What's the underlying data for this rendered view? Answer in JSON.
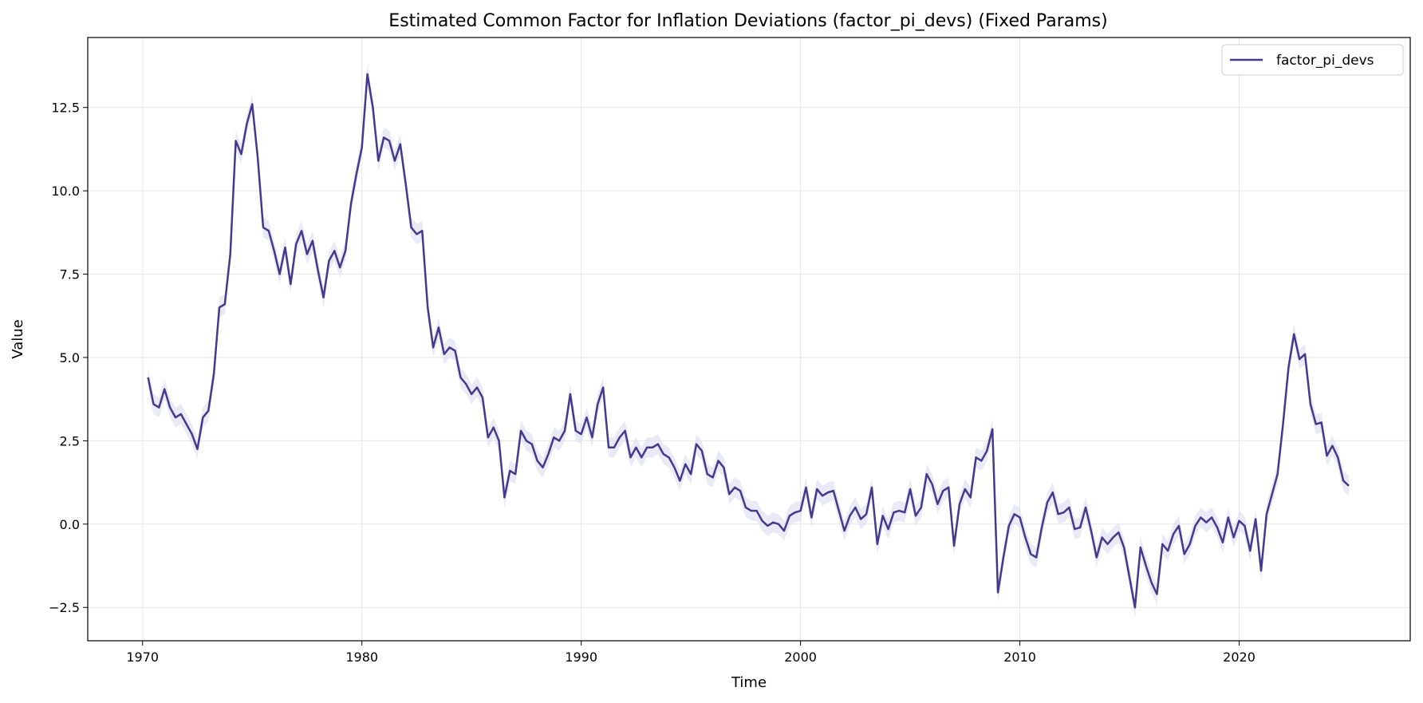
{
  "chart_data": {
    "type": "line",
    "title": "Estimated Common Factor for Inflation Deviations (factor_pi_devs) (Fixed Params)",
    "xlabel": "Time",
    "ylabel": "Value",
    "xlim": [
      1967.5,
      2027.8
    ],
    "ylim": [
      -3.5,
      14.6
    ],
    "xticks": [
      1970,
      1980,
      1990,
      2000,
      2010,
      2020
    ],
    "yticks": [
      -2.5,
      0.0,
      2.5,
      5.0,
      7.5,
      10.0,
      12.5
    ],
    "ytick_labels": [
      "−2.5",
      "0.0",
      "2.5",
      "5.0",
      "7.5",
      "10.0",
      "12.5"
    ],
    "grid": true,
    "legend_position": "top-right",
    "legend": [
      "factor_pi_devs"
    ],
    "band_halfwidth": 0.3,
    "colors": {
      "line": "#433a8c",
      "band": "#dcdcf0",
      "grid": "#e6e6e6",
      "axis": "#000000"
    },
    "series": [
      {
        "name": "factor_pi_devs",
        "x": [
          1970.25,
          1970.5,
          1970.75,
          1971.0,
          1971.25,
          1971.5,
          1971.75,
          1972.0,
          1972.25,
          1972.5,
          1972.75,
          1973.0,
          1973.25,
          1973.5,
          1973.75,
          1974.0,
          1974.25,
          1974.5,
          1974.75,
          1975.0,
          1975.25,
          1975.5,
          1975.75,
          1976.0,
          1976.25,
          1976.5,
          1976.75,
          1977.0,
          1977.25,
          1977.5,
          1977.75,
          1978.0,
          1978.25,
          1978.5,
          1978.75,
          1979.0,
          1979.25,
          1979.5,
          1979.75,
          1980.0,
          1980.25,
          1980.5,
          1980.75,
          1981.0,
          1981.25,
          1981.5,
          1981.75,
          1982.0,
          1982.25,
          1982.5,
          1982.75,
          1983.0,
          1983.25,
          1983.5,
          1983.75,
          1984.0,
          1984.25,
          1984.5,
          1984.75,
          1985.0,
          1985.25,
          1985.5,
          1985.75,
          1986.0,
          1986.25,
          1986.5,
          1986.75,
          1987.0,
          1987.25,
          1987.5,
          1987.75,
          1988.0,
          1988.25,
          1988.5,
          1988.75,
          1989.0,
          1989.25,
          1989.5,
          1989.75,
          1990.0,
          1990.25,
          1990.5,
          1990.75,
          1991.0,
          1991.25,
          1991.5,
          1991.75,
          1992.0,
          1992.25,
          1992.5,
          1992.75,
          1993.0,
          1993.25,
          1993.5,
          1993.75,
          1994.0,
          1994.25,
          1994.5,
          1994.75,
          1995.0,
          1995.25,
          1995.5,
          1995.75,
          1996.0,
          1996.25,
          1996.5,
          1996.75,
          1997.0,
          1997.25,
          1997.5,
          1997.75,
          1998.0,
          1998.25,
          1998.5,
          1998.75,
          1999.0,
          1999.25,
          1999.5,
          1999.75,
          2000.0,
          2000.25,
          2000.5,
          2000.75,
          2001.0,
          2001.25,
          2001.5,
          2001.75,
          2002.0,
          2002.25,
          2002.5,
          2002.75,
          2003.0,
          2003.25,
          2003.5,
          2003.75,
          2004.0,
          2004.25,
          2004.5,
          2004.75,
          2005.0,
          2005.25,
          2005.5,
          2005.75,
          2006.0,
          2006.25,
          2006.5,
          2006.75,
          2007.0,
          2007.25,
          2007.5,
          2007.75,
          2008.0,
          2008.25,
          2008.5,
          2008.75,
          2009.0,
          2009.25,
          2009.5,
          2009.75,
          2010.0,
          2010.25,
          2010.5,
          2010.75,
          2011.0,
          2011.25,
          2011.5,
          2011.75,
          2012.0,
          2012.25,
          2012.5,
          2012.75,
          2013.0,
          2013.25,
          2013.5,
          2013.75,
          2014.0,
          2014.25,
          2014.5,
          2014.75,
          2015.0,
          2015.25,
          2015.5,
          2015.75,
          2016.0,
          2016.25,
          2016.5,
          2016.75,
          2017.0,
          2017.25,
          2017.5,
          2017.75,
          2018.0,
          2018.25,
          2018.5,
          2018.75,
          2019.0,
          2019.25,
          2019.5,
          2019.75,
          2020.0,
          2020.25,
          2020.5,
          2020.75,
          2021.0,
          2021.25,
          2021.5,
          2021.75,
          2022.0,
          2022.25,
          2022.5,
          2022.75,
          2023.0,
          2023.25,
          2023.5,
          2023.75,
          2024.0,
          2024.25,
          2024.5,
          2024.75,
          2025.0
        ],
        "values": [
          4.4,
          3.6,
          3.5,
          4.05,
          3.5,
          3.2,
          3.3,
          3.0,
          2.7,
          2.25,
          3.2,
          3.4,
          4.5,
          6.5,
          6.6,
          8.1,
          11.5,
          11.1,
          12.0,
          12.6,
          11.0,
          8.9,
          8.8,
          8.2,
          7.5,
          8.3,
          7.2,
          8.4,
          8.8,
          8.1,
          8.5,
          7.6,
          6.8,
          7.9,
          8.2,
          7.7,
          8.2,
          9.6,
          10.5,
          11.3,
          13.5,
          12.5,
          10.9,
          11.6,
          11.5,
          10.9,
          11.4,
          10.2,
          8.9,
          8.7,
          8.8,
          6.5,
          5.3,
          5.9,
          5.1,
          5.3,
          5.2,
          4.4,
          4.2,
          3.9,
          4.1,
          3.8,
          2.6,
          2.9,
          2.5,
          0.8,
          1.6,
          1.5,
          2.8,
          2.5,
          2.4,
          1.9,
          1.7,
          2.1,
          2.6,
          2.5,
          2.8,
          3.9,
          2.8,
          2.7,
          3.2,
          2.6,
          3.6,
          4.1,
          2.3,
          2.3,
          2.6,
          2.8,
          2.0,
          2.3,
          2.0,
          2.3,
          2.3,
          2.4,
          2.1,
          2.0,
          1.7,
          1.3,
          1.8,
          1.5,
          2.4,
          2.2,
          1.5,
          1.4,
          1.9,
          1.7,
          0.9,
          1.1,
          1.0,
          0.5,
          0.4,
          0.4,
          0.1,
          -0.05,
          0.05,
          0.0,
          -0.2,
          0.25,
          0.35,
          0.4,
          1.1,
          0.2,
          1.05,
          0.85,
          0.95,
          1.0,
          0.4,
          -0.2,
          0.25,
          0.5,
          0.15,
          0.3,
          1.1,
          -0.6,
          0.25,
          -0.15,
          0.35,
          0.4,
          0.35,
          1.05,
          0.25,
          0.5,
          1.5,
          1.2,
          0.6,
          1.0,
          1.1,
          -0.65,
          0.6,
          1.05,
          0.8,
          2.0,
          1.9,
          2.2,
          2.85,
          -2.05,
          -1.0,
          -0.05,
          0.3,
          0.2,
          -0.4,
          -0.9,
          -1.0,
          -0.1,
          0.65,
          0.95,
          0.3,
          0.35,
          0.5,
          -0.15,
          -0.1,
          0.5,
          -0.2,
          -1.0,
          -0.4,
          -0.6,
          -0.4,
          -0.25,
          -0.7,
          -1.6,
          -2.5,
          -0.7,
          -1.25,
          -1.75,
          -2.1,
          -0.6,
          -0.8,
          -0.3,
          -0.05,
          -0.9,
          -0.6,
          -0.05,
          0.2,
          0.05,
          0.2,
          -0.1,
          -0.55,
          0.2,
          -0.4,
          0.1,
          -0.05,
          -0.8,
          0.15,
          -1.4,
          0.3,
          0.9,
          1.5,
          3.0,
          4.7,
          5.7,
          4.95,
          5.1,
          3.6,
          3.0,
          3.05,
          2.05,
          2.35,
          2.0,
          1.3,
          1.15
        ]
      }
    ]
  }
}
